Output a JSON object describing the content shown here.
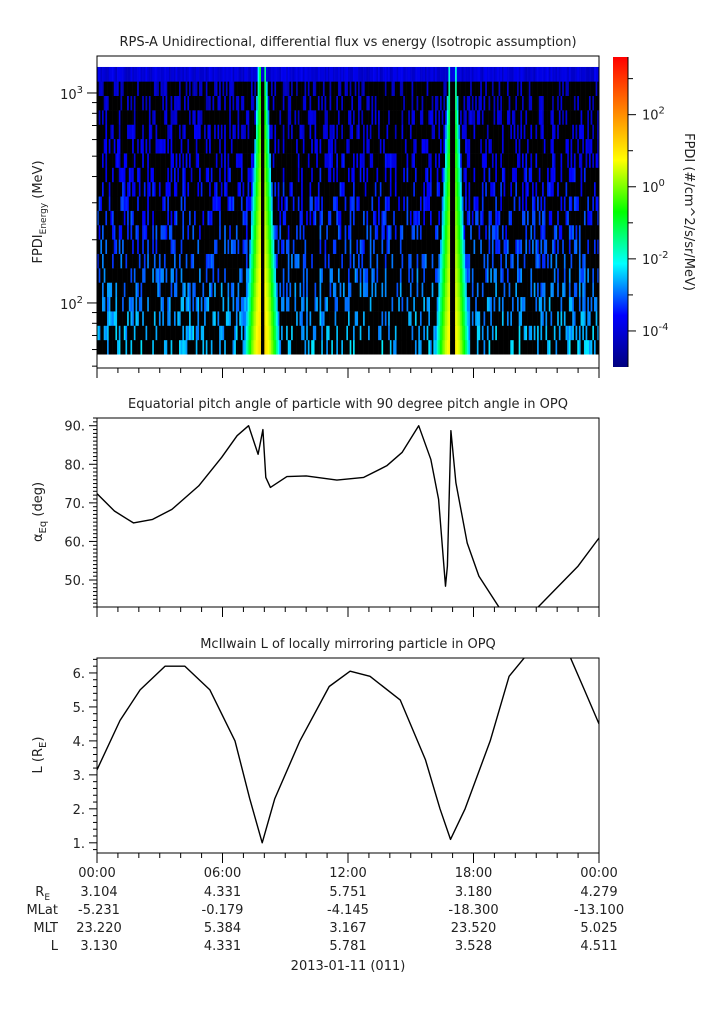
{
  "chart_data": [
    {
      "type": "heatmap",
      "title": "RPS-A Unidirectional, differential flux vs energy (Isotropic assumption)",
      "ylabel_main": "FPDI",
      "ylabel_sub": "Energy",
      "ylabel_unit": " (MeV)",
      "yscale": "log",
      "ylim": [
        49,
        1500
      ],
      "energy_range": [
        57,
        1330
      ],
      "energy_bins": 20,
      "yticks": [
        {
          "value": 100,
          "base": "10",
          "exp": "2"
        },
        {
          "value": 1000,
          "base": "10",
          "exp": "3"
        }
      ],
      "xlim_hours": [
        0,
        24
      ],
      "high_flux_bands_hours": [
        {
          "center": 7.9,
          "peak_log_flux": 1.2
        },
        {
          "center": 17.0,
          "peak_log_flux": 1.0
        }
      ],
      "background_log_flux_range": [
        -4.5,
        -2
      ],
      "colorbar": {
        "label": "FPDI (#/cm^2/s/sr/MeV)",
        "scale": "log",
        "range_log": [
          -5,
          3.6
        ],
        "ticks": [
          {
            "exp": "-4",
            "v": -4
          },
          {
            "exp": "-2",
            "v": -2
          },
          {
            "exp": "0",
            "v": 0
          },
          {
            "exp": "2",
            "v": 2
          }
        ],
        "colors": [
          "#00007f",
          "#0000ff",
          "#00ffff",
          "#00ff00",
          "#ffff00",
          "#ff7f00",
          "#ff0000"
        ]
      }
    },
    {
      "type": "line",
      "title": "Equatorial pitch angle of particle with 90 degree pitch angle in OPQ",
      "ylabel_main": "α",
      "ylabel_sub": "Eq",
      "ylabel_unit": " (deg)",
      "ylim": [
        43,
        92
      ],
      "yticks": [
        50,
        60,
        70,
        80,
        90
      ],
      "ytick_labels": [
        "50.",
        "60.",
        "70.",
        "80.",
        "90."
      ],
      "x_hours": [
        0,
        0.83,
        1.74,
        2.66,
        3.58,
        4.86,
        5.96,
        6.7,
        7.25,
        7.7,
        7.93,
        8.07,
        8.29,
        9.08,
        10,
        11.47,
        12.75,
        13.85,
        14.59,
        15.38,
        15.96,
        16.33,
        16.66,
        16.75,
        16.92,
        17.16,
        17.7,
        18.26,
        19.27,
        21.0,
        21.9,
        23.0,
        24
      ],
      "y": [
        72.4,
        67.9,
        64.8,
        65.7,
        68.3,
        74.4,
        81.8,
        87.4,
        90,
        82.6,
        89,
        76.6,
        74,
        76.8,
        77,
        75.9,
        76.6,
        79.6,
        83.1,
        90,
        81.3,
        70.9,
        48.4,
        53.6,
        88.7,
        75.2,
        59.6,
        51,
        42.5,
        42.5,
        47.5,
        53.6,
        60.9
      ]
    },
    {
      "type": "line",
      "title": "McIlwain L of locally mirroring particle in OPQ",
      "ylabel_main": "L (R",
      "ylabel_sub": "E",
      "ylabel_unit": ")",
      "ylim": [
        0.7,
        6.44
      ],
      "yticks": [
        1,
        2,
        3,
        4,
        5,
        6
      ],
      "ytick_labels": [
        "1.",
        "2.",
        "3.",
        "4.",
        "5.",
        "6."
      ],
      "x_hours": [
        0,
        1.1,
        2.06,
        3.25,
        4.2,
        5.4,
        6.6,
        7.3,
        7.9,
        8.5,
        9.7,
        11.1,
        12.1,
        13.05,
        14.5,
        15.7,
        16.4,
        16.9,
        17.6,
        18.8,
        19.7,
        20.5,
        22.6,
        23.3,
        24
      ],
      "y": [
        3.15,
        4.6,
        5.5,
        6.2,
        6.2,
        5.5,
        4.0,
        2.3,
        1.0,
        2.3,
        4.0,
        5.6,
        6.05,
        5.9,
        5.2,
        3.45,
        2.0,
        1.1,
        2.0,
        4.0,
        5.9,
        6.5,
        6.5,
        5.5,
        4.5
      ]
    }
  ],
  "time_axis": {
    "labels": [
      "00:00",
      "06:00",
      "12:00",
      "18:00",
      "00:00"
    ],
    "date": "2013-01-11 (011)"
  },
  "ephemeris": [
    {
      "label": "R",
      "sub": "E",
      "values": [
        "3.104",
        "4.331",
        "5.751",
        "3.180",
        "4.279"
      ]
    },
    {
      "label": "MLat",
      "sub": "",
      "values": [
        "-5.231",
        "-0.179",
        "-4.145",
        "-18.300",
        "-13.100"
      ]
    },
    {
      "label": "MLT",
      "sub": "",
      "values": [
        "23.220",
        "5.384",
        "3.167",
        "23.520",
        "5.025"
      ]
    },
    {
      "label": "L",
      "sub": "",
      "values": [
        "3.130",
        "4.331",
        "5.781",
        "3.528",
        "4.511"
      ]
    }
  ]
}
